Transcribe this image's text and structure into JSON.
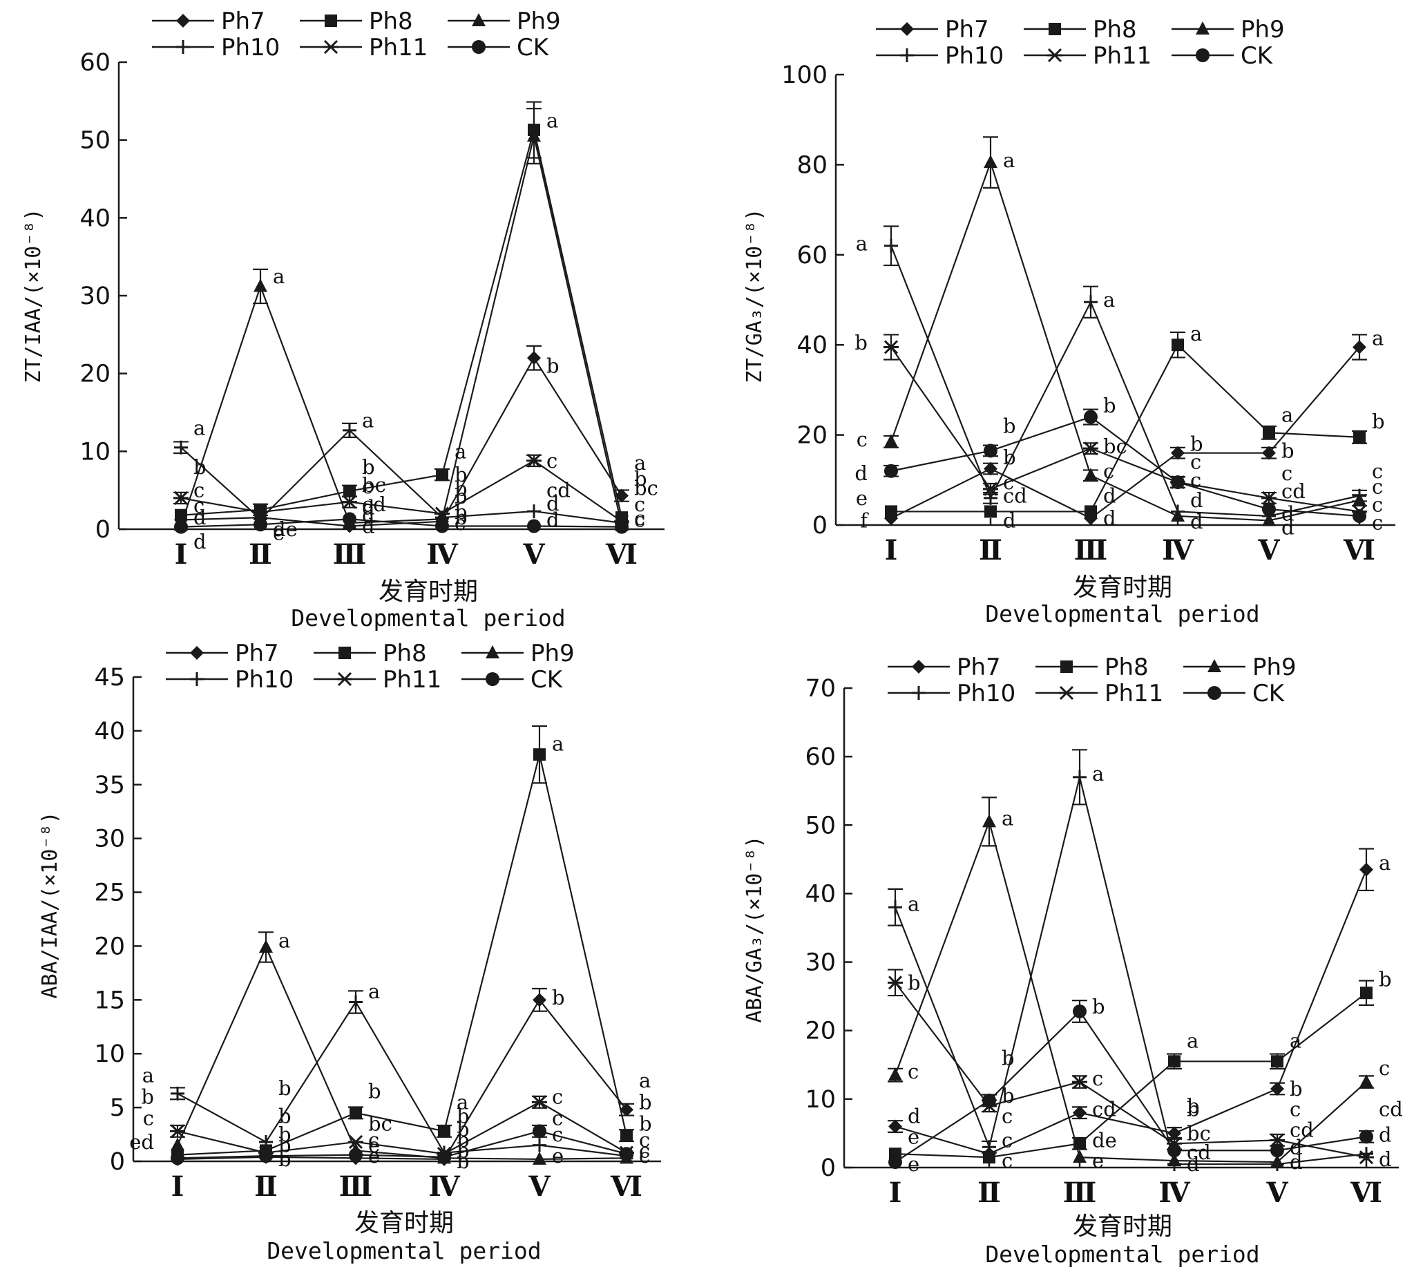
{
  "figure": {
    "series_names": [
      "Ph7",
      "Ph8",
      "Ph9",
      "Ph10",
      "Ph11",
      "CK"
    ],
    "series_markers": [
      "diamond-icon",
      "square-icon",
      "triangle-icon",
      "plus-icon",
      "asterisk-icon",
      "circle-icon"
    ],
    "line_color": "#1a1a1a"
  },
  "chart_data": [
    {
      "type": "line",
      "ylabel": "ZT/IAA/(×10⁻⁸)",
      "xlabel_cn": "发育时期",
      "xlabel_en": "Developmental period",
      "categories": [
        "Ⅰ",
        "Ⅱ",
        "Ⅲ",
        "Ⅳ",
        "Ⅴ",
        "Ⅵ"
      ],
      "ylim": [
        0,
        60
      ],
      "yticks": [
        0,
        10,
        20,
        30,
        40,
        50,
        60
      ],
      "series": [
        {
          "name": "Ph7",
          "values": [
            1.2,
            1.5,
            0.4,
            1.0,
            22.0,
            4.3
          ]
        },
        {
          "name": "Ph8",
          "values": [
            1.8,
            2.5,
            4.9,
            7.0,
            51.3,
            1.5
          ]
        },
        {
          "name": "Ph9",
          "values": [
            0.5,
            31.2,
            0.8,
            1.3,
            50.5,
            0.5
          ]
        },
        {
          "name": "Ph10",
          "values": [
            10.5,
            1.3,
            12.7,
            1.5,
            2.3,
            0.8
          ]
        },
        {
          "name": "Ph11",
          "values": [
            4.0,
            2.2,
            3.5,
            2.0,
            8.8,
            1.0
          ]
        },
        {
          "name": "CK",
          "values": [
            0.3,
            0.6,
            1.3,
            0.4,
            0.4,
            0.3
          ]
        }
      ],
      "annotations": [
        {
          "cat": 0,
          "y": 13,
          "text": "a"
        },
        {
          "cat": 0,
          "y": 8,
          "text": "b"
        },
        {
          "cat": 0,
          "y": 5,
          "text": "c"
        },
        {
          "cat": 0,
          "y": 3,
          "text": "c"
        },
        {
          "cat": 0,
          "y": 1.5,
          "text": "d"
        },
        {
          "cat": 0,
          "y": -1.6,
          "text": "d"
        },
        {
          "cat": 1,
          "y": 32.5,
          "text": "a"
        },
        {
          "cat": 1,
          "y": -0.5,
          "text": "e"
        },
        {
          "cat": 1,
          "y": 0.0,
          "text": "de"
        },
        {
          "cat": 2,
          "y": 8,
          "text": "b"
        },
        {
          "cat": 2,
          "y": 5.7,
          "text": "bc"
        },
        {
          "cat": 2,
          "y": 2.8,
          "text": "d"
        },
        {
          "cat": 2,
          "y": 14,
          "text": "a"
        },
        {
          "cat": 2,
          "y": 8,
          "text": "b"
        },
        {
          "cat": 2,
          "y": 5.5,
          "text": "c"
        },
        {
          "cat": 2,
          "y": 3.2,
          "text": "cd"
        },
        {
          "cat": 2,
          "y": 1.8,
          "text": "d"
        },
        {
          "cat": 2,
          "y": 0.4,
          "text": "d"
        },
        {
          "cat": 3,
          "y": 10,
          "text": "a"
        },
        {
          "cat": 3,
          "y": 7,
          "text": "b"
        },
        {
          "cat": 3,
          "y": 4.2,
          "text": "b"
        },
        {
          "cat": 3,
          "y": 2.2,
          "text": "b"
        },
        {
          "cat": 3,
          "y": 5.2,
          "text": "b"
        },
        {
          "cat": 3,
          "y": 1.5,
          "text": "b"
        },
        {
          "cat": 3,
          "y": 0.8,
          "text": "c"
        },
        {
          "cat": 4,
          "y": 52.5,
          "text": "a"
        },
        {
          "cat": 4,
          "y": 21,
          "text": "b"
        },
        {
          "cat": 4,
          "y": 8.8,
          "text": "c"
        },
        {
          "cat": 4,
          "y": 5,
          "text": "cd"
        },
        {
          "cat": 4,
          "y": 3.3,
          "text": "d"
        },
        {
          "cat": 4,
          "y": 1.2,
          "text": "d"
        },
        {
          "cat": 5,
          "y": 8.5,
          "text": "a"
        },
        {
          "cat": 5,
          "y": 6.5,
          "text": "b"
        },
        {
          "cat": 5,
          "y": 5.3,
          "text": "bc"
        },
        {
          "cat": 5,
          "y": 3.2,
          "text": "c"
        },
        {
          "cat": 5,
          "y": 1.2,
          "text": "c"
        },
        {
          "cat": 5,
          "y": 1.4,
          "text": "c"
        }
      ]
    },
    {
      "type": "line",
      "ylabel": "ZT/GA₃/(×10⁻⁸)",
      "xlabel_cn": "发育时期",
      "xlabel_en": "Developmental period",
      "categories": [
        "Ⅰ",
        "Ⅱ",
        "Ⅲ",
        "Ⅳ",
        "Ⅴ",
        "Ⅵ"
      ],
      "ylim": [
        0,
        100
      ],
      "yticks": [
        0,
        20,
        40,
        60,
        80,
        100
      ],
      "series": [
        {
          "name": "Ph7",
          "values": [
            1.5,
            12.5,
            1.5,
            16.0,
            16.0,
            39.5
          ]
        },
        {
          "name": "Ph8",
          "values": [
            3.0,
            3.0,
            3.0,
            40.0,
            20.5,
            19.5
          ]
        },
        {
          "name": "Ph9",
          "values": [
            18.5,
            80.5,
            11.0,
            2.0,
            1.0,
            5.5
          ]
        },
        {
          "name": "Ph10",
          "values": [
            62.0,
            6.0,
            49.5,
            3.0,
            2.0,
            6.5
          ]
        },
        {
          "name": "Ph11",
          "values": [
            39.5,
            8.0,
            17.0,
            9.5,
            6.0,
            3.0
          ]
        },
        {
          "name": "CK",
          "values": [
            12.0,
            16.5,
            24.0,
            9.5,
            3.5,
            2.0
          ]
        }
      ],
      "annotations": [
        {
          "cat": 0,
          "y": 62.5,
          "text": "a",
          "side": "left"
        },
        {
          "cat": 0,
          "y": 40.5,
          "text": "b",
          "side": "left"
        },
        {
          "cat": 0,
          "y": 19,
          "text": "c",
          "side": "left"
        },
        {
          "cat": 0,
          "y": 11.5,
          "text": "d",
          "side": "left"
        },
        {
          "cat": 0,
          "y": 6,
          "text": "e",
          "side": "left"
        },
        {
          "cat": 0,
          "y": 1,
          "text": "f",
          "side": "left"
        },
        {
          "cat": 1,
          "y": 22,
          "text": "b"
        },
        {
          "cat": 1,
          "y": 15,
          "text": "b"
        },
        {
          "cat": 1,
          "y": 9.5,
          "text": "c"
        },
        {
          "cat": 1,
          "y": 6.5,
          "text": "cd"
        },
        {
          "cat": 1,
          "y": 1,
          "text": "d"
        },
        {
          "cat": 1,
          "y": 81,
          "text": "a"
        },
        {
          "cat": 2,
          "y": 50,
          "text": "a"
        },
        {
          "cat": 2,
          "y": 26.5,
          "text": "b"
        },
        {
          "cat": 2,
          "y": 17.5,
          "text": "bc"
        },
        {
          "cat": 2,
          "y": 12,
          "text": "c"
        },
        {
          "cat": 2,
          "y": 6.5,
          "text": "d"
        },
        {
          "cat": 2,
          "y": 1.5,
          "text": "d"
        },
        {
          "cat": 3,
          "y": 42.5,
          "text": "a"
        },
        {
          "cat": 3,
          "y": 18,
          "text": "b"
        },
        {
          "cat": 3,
          "y": 14,
          "text": "c"
        },
        {
          "cat": 3,
          "y": 10,
          "text": "c"
        },
        {
          "cat": 3,
          "y": 5.5,
          "text": "d"
        },
        {
          "cat": 3,
          "y": 0.8,
          "text": "d"
        },
        {
          "cat": 4,
          "y": 24.5,
          "text": "a"
        },
        {
          "cat": 4,
          "y": 16.5,
          "text": "b"
        },
        {
          "cat": 4,
          "y": 11.5,
          "text": "c"
        },
        {
          "cat": 4,
          "y": 7.5,
          "text": "cd"
        },
        {
          "cat": 4,
          "y": 2.5,
          "text": "d"
        },
        {
          "cat": 4,
          "y": -0.5,
          "text": "d"
        },
        {
          "cat": 5,
          "y": 41.5,
          "text": "a"
        },
        {
          "cat": 5,
          "y": 23,
          "text": "b"
        },
        {
          "cat": 5,
          "y": 12,
          "text": "c"
        },
        {
          "cat": 5,
          "y": 8.5,
          "text": "c"
        },
        {
          "cat": 5,
          "y": 4.5,
          "text": "c"
        },
        {
          "cat": 5,
          "y": 0.5,
          "text": "c"
        }
      ]
    },
    {
      "type": "line",
      "ylabel": "ABA/IAA/(×10⁻⁸)",
      "xlabel_cn": "发育时期",
      "xlabel_en": "Developmental period",
      "categories": [
        "Ⅰ",
        "Ⅱ",
        "Ⅲ",
        "Ⅳ",
        "Ⅴ",
        "Ⅵ"
      ],
      "ylim": [
        0,
        45
      ],
      "yticks": [
        0,
        5,
        10,
        15,
        20,
        25,
        30,
        35,
        40,
        45
      ],
      "series": [
        {
          "name": "Ph7",
          "values": [
            0.2,
            0.4,
            0.3,
            0.2,
            15.0,
            4.8
          ]
        },
        {
          "name": "Ph8",
          "values": [
            0.6,
            1.0,
            4.5,
            2.8,
            37.8,
            2.4
          ]
        },
        {
          "name": "Ph9",
          "values": [
            1.5,
            19.9,
            1.0,
            0.3,
            0.2,
            0.3
          ]
        },
        {
          "name": "Ph10",
          "values": [
            6.3,
            1.8,
            14.8,
            0.8,
            1.5,
            0.5
          ]
        },
        {
          "name": "Ph11",
          "values": [
            2.8,
            0.8,
            1.8,
            0.7,
            5.5,
            0.8
          ]
        },
        {
          "name": "CK",
          "values": [
            0.3,
            0.5,
            0.6,
            0.4,
            2.8,
            0.7
          ]
        }
      ],
      "annotations": [
        {
          "cat": 0,
          "y": 8,
          "text": "a",
          "side": "left"
        },
        {
          "cat": 0,
          "y": 6,
          "text": "b",
          "side": "left"
        },
        {
          "cat": 0,
          "y": 4,
          "text": "c",
          "side": "left"
        },
        {
          "cat": 0,
          "y": 1.8,
          "text": "ed",
          "side": "left"
        },
        {
          "cat": 1,
          "y": 20.5,
          "text": "a"
        },
        {
          "cat": 1,
          "y": 6.8,
          "text": "b"
        },
        {
          "cat": 1,
          "y": 4.2,
          "text": "b"
        },
        {
          "cat": 1,
          "y": 2.5,
          "text": "b"
        },
        {
          "cat": 1,
          "y": 1.5,
          "text": "b"
        },
        {
          "cat": 1,
          "y": 0.2,
          "text": "b"
        },
        {
          "cat": 2,
          "y": 15.8,
          "text": "a"
        },
        {
          "cat": 2,
          "y": 6.5,
          "text": "b"
        },
        {
          "cat": 2,
          "y": 3.5,
          "text": "bc"
        },
        {
          "cat": 2,
          "y": 2,
          "text": "c"
        },
        {
          "cat": 2,
          "y": 1.5,
          "text": "e"
        },
        {
          "cat": 2,
          "y": 0.5,
          "text": "e"
        },
        {
          "cat": 3,
          "y": 5.5,
          "text": "a"
        },
        {
          "cat": 3,
          "y": 4.2,
          "text": "b"
        },
        {
          "cat": 3,
          "y": 3,
          "text": "b"
        },
        {
          "cat": 3,
          "y": 2,
          "text": "b"
        },
        {
          "cat": 3,
          "y": 1,
          "text": "b"
        },
        {
          "cat": 3,
          "y": 0,
          "text": "b"
        },
        {
          "cat": 4,
          "y": 38.8,
          "text": "a"
        },
        {
          "cat": 4,
          "y": 15.2,
          "text": "b"
        },
        {
          "cat": 4,
          "y": 6,
          "text": "c"
        },
        {
          "cat": 4,
          "y": 4,
          "text": "c"
        },
        {
          "cat": 4,
          "y": 2.5,
          "text": "c"
        },
        {
          "cat": 4,
          "y": 0.5,
          "text": "e"
        },
        {
          "cat": 5,
          "y": 7.5,
          "text": "a"
        },
        {
          "cat": 5,
          "y": 5.5,
          "text": "b"
        },
        {
          "cat": 5,
          "y": 3.5,
          "text": "b"
        },
        {
          "cat": 5,
          "y": 2,
          "text": "c"
        },
        {
          "cat": 5,
          "y": 0.5,
          "text": "c"
        },
        {
          "cat": 5,
          "y": 1,
          "text": "c"
        }
      ]
    },
    {
      "type": "line",
      "ylabel": "ABA/GA₃/(×10⁻⁸)",
      "xlabel_cn": "发育时期",
      "xlabel_en": "Developmental period",
      "categories": [
        "Ⅰ",
        "Ⅱ",
        "Ⅲ",
        "Ⅳ",
        "Ⅴ",
        "Ⅵ"
      ],
      "ylim": [
        0,
        70
      ],
      "yticks": [
        0,
        10,
        20,
        30,
        40,
        50,
        60,
        70
      ],
      "series": [
        {
          "name": "Ph7",
          "values": [
            6.0,
            2.0,
            8.0,
            5.0,
            11.5,
            43.5
          ]
        },
        {
          "name": "Ph8",
          "values": [
            2.0,
            1.5,
            3.5,
            15.5,
            15.5,
            25.5
          ]
        },
        {
          "name": "Ph9",
          "values": [
            13.5,
            50.5,
            1.5,
            1.0,
            0.8,
            12.5
          ]
        },
        {
          "name": "Ph10",
          "values": [
            38.0,
            3.0,
            57.0,
            0.5,
            0.5,
            2.0
          ]
        },
        {
          "name": "Ph11",
          "values": [
            27.0,
            9.0,
            12.5,
            3.5,
            4.0,
            1.5
          ]
        },
        {
          "name": "CK",
          "values": [
            0.8,
            9.8,
            22.8,
            2.5,
            2.5,
            4.5
          ]
        }
      ],
      "annotations": [
        {
          "cat": 0,
          "y": 38.5,
          "text": "a"
        },
        {
          "cat": 0,
          "y": 27,
          "text": "b"
        },
        {
          "cat": 0,
          "y": 14,
          "text": "c"
        },
        {
          "cat": 0,
          "y": 7.5,
          "text": "d"
        },
        {
          "cat": 0,
          "y": 4.5,
          "text": "e"
        },
        {
          "cat": 0,
          "y": 0.5,
          "text": "e"
        },
        {
          "cat": 1,
          "y": 51,
          "text": "a"
        },
        {
          "cat": 1,
          "y": 16,
          "text": "b"
        },
        {
          "cat": 1,
          "y": 10.5,
          "text": "b"
        },
        {
          "cat": 1,
          "y": 7.5,
          "text": "c"
        },
        {
          "cat": 1,
          "y": 4,
          "text": "c"
        },
        {
          "cat": 1,
          "y": 1,
          "text": "c"
        },
        {
          "cat": 2,
          "y": 57.5,
          "text": "a"
        },
        {
          "cat": 2,
          "y": 23.5,
          "text": "b"
        },
        {
          "cat": 2,
          "y": 13,
          "text": "c"
        },
        {
          "cat": 2,
          "y": 8.5,
          "text": "cd"
        },
        {
          "cat": 2,
          "y": 4,
          "text": "de"
        },
        {
          "cat": 2,
          "y": 1,
          "text": "e"
        },
        {
          "cat": 3,
          "y": 18.5,
          "text": "a"
        },
        {
          "cat": 3,
          "y": 9,
          "text": "b"
        },
        {
          "cat": 3,
          "y": 8.5,
          "text": "b"
        },
        {
          "cat": 3,
          "y": 5,
          "text": "bc"
        },
        {
          "cat": 3,
          "y": 2.2,
          "text": "cd"
        },
        {
          "cat": 3,
          "y": 0.5,
          "text": "d"
        },
        {
          "cat": 4,
          "y": 18.5,
          "text": "a"
        },
        {
          "cat": 4,
          "y": 11.5,
          "text": "b"
        },
        {
          "cat": 4,
          "y": 8.5,
          "text": "c"
        },
        {
          "cat": 4,
          "y": 5.5,
          "text": "cd"
        },
        {
          "cat": 4,
          "y": 3,
          "text": "d"
        },
        {
          "cat": 4,
          "y": 0.8,
          "text": "d"
        },
        {
          "cat": 5,
          "y": 44.5,
          "text": "a"
        },
        {
          "cat": 5,
          "y": 27.5,
          "text": "b"
        },
        {
          "cat": 5,
          "y": 14.5,
          "text": "c"
        },
        {
          "cat": 5,
          "y": 8.5,
          "text": "cd"
        },
        {
          "cat": 5,
          "y": 4.8,
          "text": "d"
        },
        {
          "cat": 5,
          "y": 1.2,
          "text": "d"
        }
      ]
    }
  ]
}
